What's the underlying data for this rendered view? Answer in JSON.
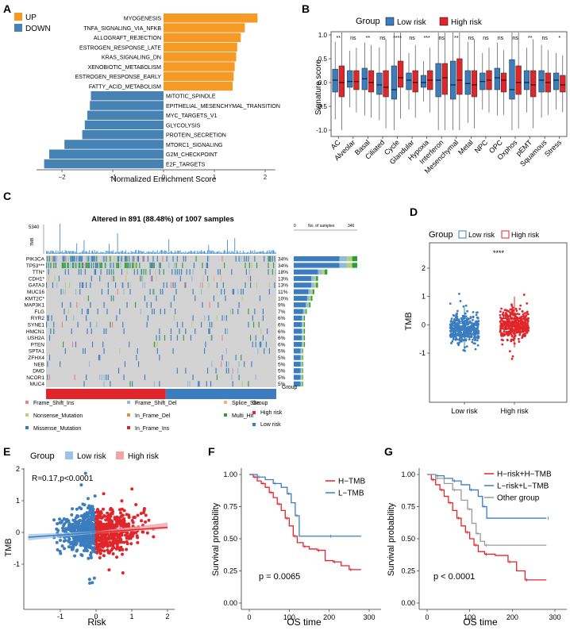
{
  "colors": {
    "up": "#F59A25",
    "down": "#4682B4",
    "low": "#3B7DBF",
    "high": "#E0262B",
    "grey": "#999999",
    "oncoGrey": "#D3D3D3",
    "ciBlue": "#9CC3E6",
    "ciRed": "#F4A3A6"
  },
  "panels": {
    "A": {
      "letter": "A",
      "legend": [
        "UP",
        "DOWN"
      ],
      "xlabel": "Normalized Enrichment Score",
      "ticks": [
        -2,
        -1,
        0,
        1,
        2
      ],
      "bars": [
        {
          "name": "MYOGENESIS",
          "nes": 1.85
        },
        {
          "name": "TNFA_SIGNALING_VIA_NFKB",
          "nes": 1.6
        },
        {
          "name": "ALLOGRAFT_REJECTION",
          "nes": 1.52
        },
        {
          "name": "ESTROGEN_RESPONSE_LATE",
          "nes": 1.45
        },
        {
          "name": "KRAS_SIGNALING_DN",
          "nes": 1.43
        },
        {
          "name": "XENOBIOTIC_METABOLISM",
          "nes": 1.4
        },
        {
          "name": "ESTROGEN_RESPONSE_EARLY",
          "nes": 1.38
        },
        {
          "name": "FATTY_ACID_METABOLISM",
          "nes": 1.36
        },
        {
          "name": "MITOTIC_SPINDLE",
          "nes": -1.43
        },
        {
          "name": "EPITHELIAL_MESENCHYMAL_TRANSITION",
          "nes": -1.45
        },
        {
          "name": "MYC_TARGETS_V1",
          "nes": -1.5
        },
        {
          "name": "GLYCOLYSIS",
          "nes": -1.55
        },
        {
          "name": "PROTEIN_SECRETION",
          "nes": -1.6
        },
        {
          "name": "MTORC1_SIGNALING",
          "nes": -1.95
        },
        {
          "name": "G2M_CHECKPOINT",
          "nes": -2.25
        },
        {
          "name": "E2F_TARGETS",
          "nes": -2.35
        }
      ]
    },
    "B": {
      "letter": "B",
      "legendTitle": "Group",
      "legend": [
        "Low risk",
        "High risk"
      ],
      "ylabel": "Signature score",
      "yticks": [
        "-1.0",
        "-0.5",
        "0.0",
        "0.5",
        "1.0"
      ],
      "categories": [
        "AC",
        "Alveolar",
        "Basal",
        "Ciliated",
        "Cycle",
        "Glandular",
        "Hypoxia",
        "Interferon",
        "Mesenchymal",
        "Metal",
        "NPC",
        "OPC",
        "Oxphos",
        "pEMT",
        "Squamous",
        "Stress"
      ],
      "sig": [
        "**",
        "ns",
        "**",
        "ns",
        "****",
        "ns",
        "***",
        "ns",
        "**",
        "ns",
        "ns",
        "ns",
        "ns",
        "**",
        "ns",
        "*"
      ],
      "low": [
        [
          -0.2,
          0.28,
          0.05
        ],
        [
          -0.1,
          0.25,
          0.02
        ],
        [
          -0.15,
          0.3,
          0.08
        ],
        [
          -0.25,
          0.2,
          -0.05
        ],
        [
          -0.35,
          0.35,
          -0.15
        ],
        [
          -0.15,
          0.2,
          0.05
        ],
        [
          -0.1,
          0.15,
          0.0
        ],
        [
          -0.3,
          0.4,
          0.05
        ],
        [
          -0.35,
          0.45,
          -0.05
        ],
        [
          -0.25,
          0.25,
          -0.02
        ],
        [
          -0.15,
          0.2,
          0.02
        ],
        [
          -0.15,
          0.3,
          0.1
        ],
        [
          -0.35,
          0.48,
          -0.15
        ],
        [
          -0.15,
          0.25,
          0.0
        ],
        [
          -0.2,
          0.25,
          0.05
        ],
        [
          -0.15,
          0.2,
          0.05
        ]
      ],
      "high": [
        [
          -0.3,
          0.35,
          0.0
        ],
        [
          -0.15,
          0.25,
          0.02
        ],
        [
          -0.2,
          0.25,
          0.0
        ],
        [
          -0.3,
          0.25,
          -0.1
        ],
        [
          -0.1,
          0.45,
          0.1
        ],
        [
          -0.2,
          0.25,
          0.0
        ],
        [
          -0.15,
          0.25,
          0.05
        ],
        [
          -0.25,
          0.4,
          0.1
        ],
        [
          -0.25,
          0.5,
          0.05
        ],
        [
          -0.3,
          0.25,
          -0.05
        ],
        [
          -0.15,
          0.25,
          0.05
        ],
        [
          -0.2,
          0.2,
          0.05
        ],
        [
          -0.25,
          0.35,
          0.0
        ],
        [
          -0.3,
          0.25,
          -0.05
        ],
        [
          -0.2,
          0.2,
          0.0
        ],
        [
          -0.2,
          0.15,
          -0.05
        ]
      ]
    },
    "C": {
      "letter": "C",
      "title": "Altered in 891 (88.48%) of 1007 samples",
      "tmbMax": "5340",
      "tmbLabel": "TMB",
      "barAxisMax": "346",
      "barAxisZero": "0",
      "barAxisLabel": "No. of samples",
      "groupLabel": "Group",
      "genes": [
        "PIK3CA",
        "TP53***",
        "TTN*",
        "CDH1*",
        "GATA3",
        "MUC16",
        "KMT2C*",
        "MAP3K1",
        "FLG",
        "RYR2",
        "SYNE1",
        "HMCN1",
        "USH2A",
        "PTEN",
        "SPTA1",
        "ZFHX4",
        "NEB",
        "DMD",
        "NCOR1",
        "MUC4"
      ],
      "pct": [
        "34%",
        "34%",
        "18%",
        "13%",
        "13%",
        "11%",
        "10%",
        "9%",
        "7%",
        "6%",
        "6%",
        "6%",
        "6%",
        "6%",
        "5%",
        "5%",
        "5%",
        "5%",
        "5%",
        "5%"
      ],
      "legend": [
        {
          "label": "Frame_Shift_Ins",
          "color": "#F08080"
        },
        {
          "label": "Frame_Shift_Del",
          "color": "#8FBCD9"
        },
        {
          "label": "Splice_Site",
          "color": "#F4B183"
        },
        {
          "label": "Nonsense_Mutation",
          "color": "#B5CF7A"
        },
        {
          "label": "In_Frame_Del",
          "color": "#E69138"
        },
        {
          "label": "Multi_Hit",
          "color": "#2E9E3A"
        },
        {
          "label": "Missense_Mutation",
          "color": "#2C7FB8"
        },
        {
          "label": "In_Frame_Ins",
          "color": "#D62728"
        }
      ],
      "groupLegendTitle": "Group",
      "groupLegend": [
        "High risk",
        "Low risk"
      ]
    },
    "D": {
      "letter": "D",
      "legendTitle": "Group",
      "legend": [
        "Low risk",
        "High risk"
      ],
      "ylabel": "TMB",
      "sig": "****",
      "categories": [
        "Low risk",
        "High risk"
      ],
      "yticks": [
        "-1",
        "0",
        "1",
        "2"
      ],
      "low": {
        "q1": -0.32,
        "med": -0.15,
        "q3": 0.05,
        "wlo": -0.9,
        "whi": 0.6
      },
      "high": {
        "q1": -0.15,
        "med": 0.0,
        "q3": 0.22,
        "wlo": -0.8,
        "whi": 1.0
      }
    },
    "E": {
      "letter": "E",
      "legendTitle": "Group",
      "legend": [
        "Low risk",
        "High risk"
      ],
      "annotation": "R=0.17,p<0.0001",
      "xlabel": "Risk",
      "ylabel": "TMB",
      "xticks": [
        "-1",
        "0",
        "1",
        "2"
      ],
      "yticks": [
        "-1",
        "0",
        "1",
        "2"
      ],
      "fit": {
        "slope": 0.08,
        "intercept": 0.0
      }
    },
    "F": {
      "letter": "F",
      "ylabel": "Survival probability",
      "xlabel": "OS time",
      "pvalue": "p = 0.0065",
      "legend": [
        "H−TMB",
        "L−TMB"
      ],
      "xticks": [
        "0",
        "100",
        "200",
        "300"
      ],
      "yticks": [
        "0.00",
        "0.25",
        "0.50",
        "0.75",
        "1.00"
      ],
      "curves": [
        {
          "name": "H-TMB",
          "points": [
            [
              0,
              1
            ],
            [
              10,
              0.98
            ],
            [
              20,
              0.95
            ],
            [
              30,
              0.93
            ],
            [
              40,
              0.9
            ],
            [
              50,
              0.86
            ],
            [
              60,
              0.82
            ],
            [
              70,
              0.77
            ],
            [
              80,
              0.72
            ],
            [
              90,
              0.66
            ],
            [
              100,
              0.6
            ],
            [
              110,
              0.52
            ],
            [
              120,
              0.47
            ],
            [
              135,
              0.44
            ],
            [
              150,
              0.42
            ],
            [
              170,
              0.41
            ],
            [
              190,
              0.33
            ],
            [
              210,
              0.32
            ],
            [
              230,
              0.29
            ],
            [
              250,
              0.26
            ],
            [
              280,
              0.26
            ]
          ]
        },
        {
          "name": "L-TMB",
          "points": [
            [
              0,
              1
            ],
            [
              20,
              0.98
            ],
            [
              40,
              0.96
            ],
            [
              60,
              0.93
            ],
            [
              80,
              0.9
            ],
            [
              95,
              0.85
            ],
            [
              105,
              0.78
            ],
            [
              115,
              0.68
            ],
            [
              125,
              0.52
            ],
            [
              200,
              0.52
            ],
            [
              280,
              0.52
            ]
          ]
        }
      ]
    },
    "G": {
      "letter": "G",
      "ylabel": "Survival probability",
      "xlabel": "OS time",
      "pvalue": "p < 0.0001",
      "legend": [
        "H−risk+H−TMB",
        "L−risk+L−TMB",
        "Other group"
      ],
      "xticks": [
        "0",
        "100",
        "200",
        "300"
      ],
      "yticks": [
        "0.00",
        "0.25",
        "0.50",
        "0.75",
        "1.00"
      ],
      "curves": [
        {
          "name": "H-risk+H-TMB",
          "points": [
            [
              0,
              1
            ],
            [
              10,
              0.96
            ],
            [
              20,
              0.92
            ],
            [
              30,
              0.88
            ],
            [
              40,
              0.83
            ],
            [
              50,
              0.78
            ],
            [
              60,
              0.72
            ],
            [
              70,
              0.66
            ],
            [
              80,
              0.6
            ],
            [
              90,
              0.55
            ],
            [
              100,
              0.5
            ],
            [
              110,
              0.45
            ],
            [
              120,
              0.4
            ],
            [
              135,
              0.38
            ],
            [
              160,
              0.37
            ],
            [
              190,
              0.32
            ],
            [
              210,
              0.25
            ],
            [
              230,
              0.18
            ],
            [
              280,
              0.18
            ]
          ]
        },
        {
          "name": "L-risk+L-TMB",
          "points": [
            [
              0,
              1
            ],
            [
              20,
              0.99
            ],
            [
              40,
              0.97
            ],
            [
              60,
              0.95
            ],
            [
              80,
              0.92
            ],
            [
              100,
              0.88
            ],
            [
              120,
              0.83
            ],
            [
              130,
              0.75
            ],
            [
              140,
              0.66
            ],
            [
              280,
              0.66
            ]
          ]
        },
        {
          "name": "Other group",
          "points": [
            [
              0,
              1
            ],
            [
              20,
              0.97
            ],
            [
              40,
              0.93
            ],
            [
              60,
              0.88
            ],
            [
              80,
              0.8
            ],
            [
              95,
              0.73
            ],
            [
              105,
              0.62
            ],
            [
              115,
              0.54
            ],
            [
              125,
              0.48
            ],
            [
              135,
              0.45
            ],
            [
              280,
              0.45
            ]
          ]
        }
      ]
    }
  }
}
